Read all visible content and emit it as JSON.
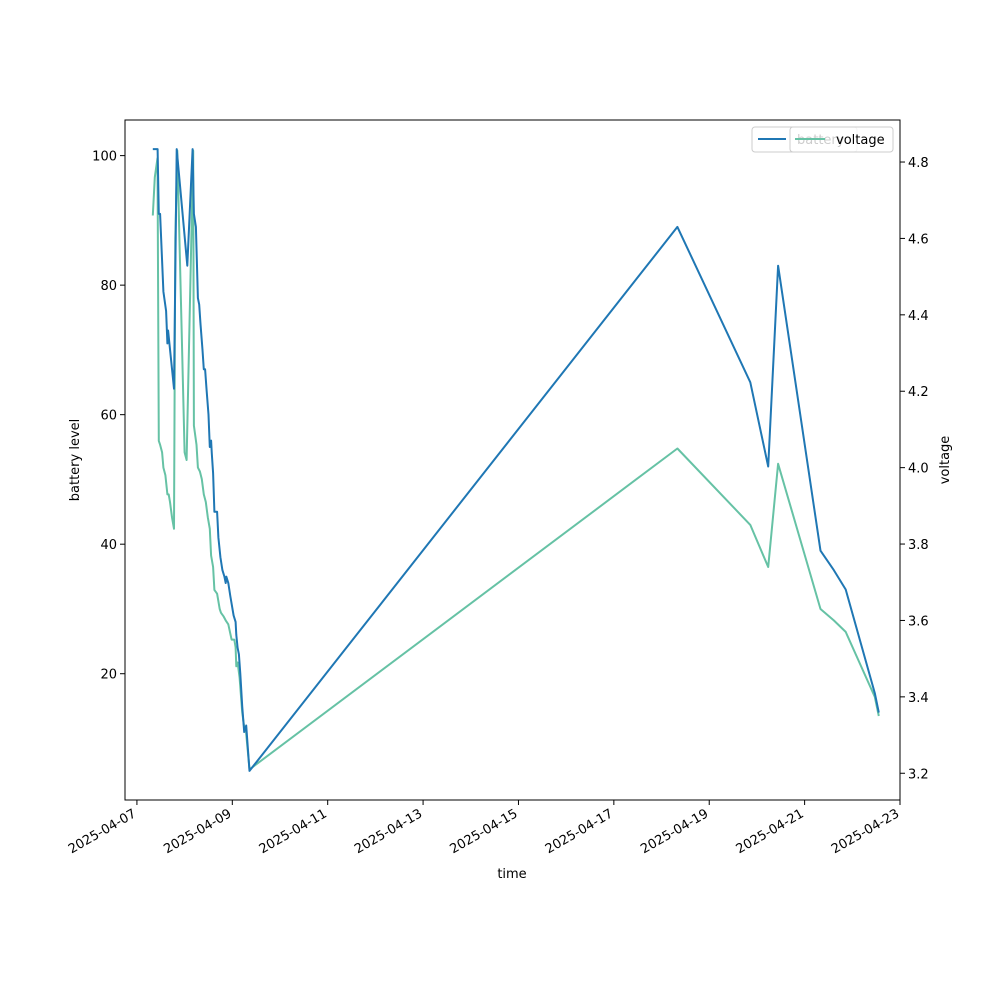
{
  "chart_data": {
    "type": "line",
    "xlabel": "time",
    "ylabel_left": "battery level",
    "ylabel_right": "voltage",
    "xlim": [
      "2025-04-06T18:00",
      "2025-04-23T00:00"
    ],
    "ylim_left": [
      0.5,
      105.5
    ],
    "ylim_right": [
      3.13,
      4.91
    ],
    "xticks": [
      "2025-04-07",
      "2025-04-09",
      "2025-04-11",
      "2025-04-13",
      "2025-04-15",
      "2025-04-17",
      "2025-04-19",
      "2025-04-21",
      "2025-04-23"
    ],
    "yticks_left": [
      20,
      40,
      60,
      80,
      100
    ],
    "yticks_right": [
      3.2,
      3.4,
      3.6,
      3.8,
      4.0,
      4.2,
      4.4,
      4.6,
      4.8
    ],
    "grid": false,
    "legend_position": "top-right",
    "series": [
      {
        "name": "battery",
        "axis": "left",
        "color": "#1f77b4",
        "points": [
          [
            "2025-04-07T08:00",
            101
          ],
          [
            "2025-04-07T10:24",
            101
          ],
          [
            "2025-04-07T11:00",
            91
          ],
          [
            "2025-04-07T11:40",
            91
          ],
          [
            "2025-04-07T13:20",
            79
          ],
          [
            "2025-04-07T14:40",
            76
          ],
          [
            "2025-04-07T15:20",
            71
          ],
          [
            "2025-04-07T15:40",
            73
          ],
          [
            "2025-04-07T16:20",
            71
          ],
          [
            "2025-04-07T18:00",
            66
          ],
          [
            "2025-04-07T18:40",
            64
          ],
          [
            "2025-04-07T20:00",
            101
          ],
          [
            "2025-04-08T01:20",
            83
          ],
          [
            "2025-04-08T04:00",
            101
          ],
          [
            "2025-04-08T04:40",
            91
          ],
          [
            "2025-04-08T05:40",
            89
          ],
          [
            "2025-04-08T06:40",
            78
          ],
          [
            "2025-04-08T07:20",
            77
          ],
          [
            "2025-04-08T08:00",
            74
          ],
          [
            "2025-04-08T09:00",
            70
          ],
          [
            "2025-04-08T09:40",
            67
          ],
          [
            "2025-04-08T10:20",
            67
          ],
          [
            "2025-04-08T11:00",
            64
          ],
          [
            "2025-04-08T12:00",
            60
          ],
          [
            "2025-04-08T12:40",
            55
          ],
          [
            "2025-04-08T13:20",
            56
          ],
          [
            "2025-04-08T13:40",
            54
          ],
          [
            "2025-04-08T14:20",
            51
          ],
          [
            "2025-04-08T15:00",
            45
          ],
          [
            "2025-04-08T16:20",
            45
          ],
          [
            "2025-04-08T17:00",
            41
          ],
          [
            "2025-04-08T18:00",
            38
          ],
          [
            "2025-04-08T19:00",
            36
          ],
          [
            "2025-04-08T20:00",
            35
          ],
          [
            "2025-04-08T20:40",
            34
          ],
          [
            "2025-04-08T21:00",
            35
          ],
          [
            "2025-04-08T22:00",
            34
          ],
          [
            "2025-04-08T23:00",
            32
          ],
          [
            "2025-04-09T00:40",
            29
          ],
          [
            "2025-04-09T01:40",
            28
          ],
          [
            "2025-04-09T02:00",
            26
          ],
          [
            "2025-04-09T02:40",
            24
          ],
          [
            "2025-04-09T03:20",
            23
          ],
          [
            "2025-04-09T04:00",
            20
          ],
          [
            "2025-04-09T05:00",
            15
          ],
          [
            "2025-04-09T06:00",
            11
          ],
          [
            "2025-04-09T07:00",
            12
          ],
          [
            "2025-04-09T08:40",
            5
          ],
          [
            "2025-04-18T08:00",
            89
          ],
          [
            "2025-04-19T20:40",
            65
          ],
          [
            "2025-04-20T05:40",
            52
          ],
          [
            "2025-04-20T10:40",
            83
          ],
          [
            "2025-04-21T08:00",
            39
          ],
          [
            "2025-04-21T14:40",
            36
          ],
          [
            "2025-04-21T20:40",
            33
          ],
          [
            "2025-04-22T11:20",
            17
          ],
          [
            "2025-04-22T13:20",
            14
          ]
        ]
      },
      {
        "name": "voltage",
        "axis": "right",
        "color": "#66c2a5",
        "points": [
          [
            "2025-04-07T08:00",
            4.66
          ],
          [
            "2025-04-07T09:00",
            4.76
          ],
          [
            "2025-04-07T10:20",
            4.81
          ],
          [
            "2025-04-07T11:00",
            4.07
          ],
          [
            "2025-04-07T11:40",
            4.06
          ],
          [
            "2025-04-07T12:40",
            4.04
          ],
          [
            "2025-04-07T13:20",
            4.0
          ],
          [
            "2025-04-07T14:20",
            3.98
          ],
          [
            "2025-04-07T15:20",
            3.93
          ],
          [
            "2025-04-07T16:00",
            3.93
          ],
          [
            "2025-04-07T16:40",
            3.91
          ],
          [
            "2025-04-07T17:40",
            3.87
          ],
          [
            "2025-04-07T18:40",
            3.84
          ],
          [
            "2025-04-07T19:20",
            4.6
          ],
          [
            "2025-04-07T20:20",
            4.83
          ],
          [
            "2025-04-08T00:00",
            4.04
          ],
          [
            "2025-04-08T01:00",
            4.02
          ],
          [
            "2025-04-08T04:20",
            4.83
          ],
          [
            "2025-04-08T04:40",
            4.11
          ],
          [
            "2025-04-08T06:00",
            4.06
          ],
          [
            "2025-04-08T06:40",
            4.0
          ],
          [
            "2025-04-08T07:40",
            3.99
          ],
          [
            "2025-04-08T08:40",
            3.97
          ],
          [
            "2025-04-08T09:40",
            3.93
          ],
          [
            "2025-04-08T10:40",
            3.91
          ],
          [
            "2025-04-08T11:40",
            3.87
          ],
          [
            "2025-04-08T12:40",
            3.84
          ],
          [
            "2025-04-08T13:20",
            3.77
          ],
          [
            "2025-04-08T14:20",
            3.74
          ],
          [
            "2025-04-08T15:00",
            3.68
          ],
          [
            "2025-04-08T16:20",
            3.67
          ],
          [
            "2025-04-08T17:40",
            3.63
          ],
          [
            "2025-04-08T18:20",
            3.62
          ],
          [
            "2025-04-08T19:40",
            3.61
          ],
          [
            "2025-04-08T20:40",
            3.6
          ],
          [
            "2025-04-08T22:00",
            3.59
          ],
          [
            "2025-04-08T23:40",
            3.55
          ],
          [
            "2025-04-09T01:00",
            3.55
          ],
          [
            "2025-04-09T01:40",
            3.53
          ],
          [
            "2025-04-09T02:00",
            3.48
          ],
          [
            "2025-04-09T02:40",
            3.49
          ],
          [
            "2025-04-09T03:40",
            3.45
          ],
          [
            "2025-04-09T05:00",
            3.36
          ],
          [
            "2025-04-09T06:00",
            3.32
          ],
          [
            "2025-04-09T06:40",
            3.32
          ],
          [
            "2025-04-09T08:40",
            3.21
          ],
          [
            "2025-04-18T08:00",
            4.05
          ],
          [
            "2025-04-19T20:40",
            3.85
          ],
          [
            "2025-04-20T05:40",
            3.74
          ],
          [
            "2025-04-20T10:40",
            4.01
          ],
          [
            "2025-04-21T08:00",
            3.63
          ],
          [
            "2025-04-21T14:40",
            3.6
          ],
          [
            "2025-04-21T20:40",
            3.57
          ],
          [
            "2025-04-22T11:20",
            3.4
          ],
          [
            "2025-04-22T13:20",
            3.35
          ]
        ]
      }
    ]
  },
  "legend": {
    "left_label": "battery",
    "right_label": "voltage"
  },
  "colors": {
    "battery": "#1f77b4",
    "voltage": "#66c2a5"
  }
}
